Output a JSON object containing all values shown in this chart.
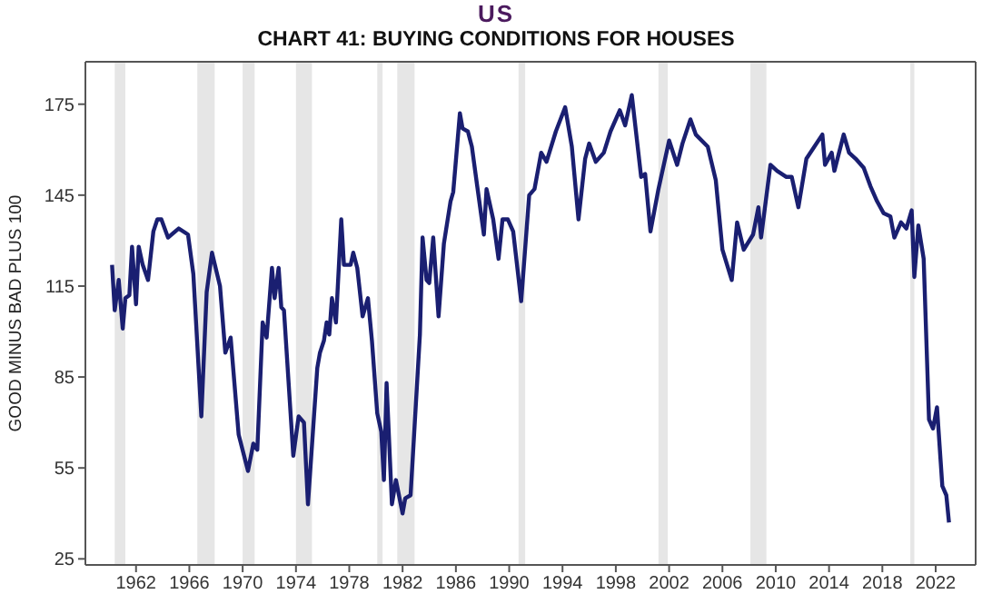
{
  "chart_data": {
    "type": "line",
    "title": "US",
    "subtitle": "CHART 41: BUYING CONDITIONS FOR HOUSES",
    "ylabel": "GOOD MINUS BAD PLUS 100",
    "x": [
      1960.2,
      1960.4,
      1960.7,
      1961.0,
      1961.2,
      1961.5,
      1961.7,
      1962.0,
      1962.2,
      1962.5,
      1962.9,
      1963.3,
      1963.6,
      1963.9,
      1964.4,
      1965.2,
      1965.9,
      1966.3,
      1966.9,
      1967.3,
      1967.7,
      1968.3,
      1968.7,
      1969.1,
      1969.7,
      1970.4,
      1970.8,
      1971.1,
      1971.5,
      1971.8,
      1972.2,
      1972.4,
      1972.7,
      1972.9,
      1973.1,
      1973.8,
      1974.2,
      1974.6,
      1974.9,
      1975.6,
      1975.8,
      1976.1,
      1976.3,
      1976.5,
      1976.7,
      1977.0,
      1977.4,
      1977.6,
      1978.1,
      1978.3,
      1978.6,
      1979.0,
      1979.4,
      1979.7,
      1980.1,
      1980.4,
      1980.6,
      1980.8,
      1981.2,
      1981.5,
      1982.0,
      1982.2,
      1982.6,
      1983.3,
      1983.5,
      1983.8,
      1984.0,
      1984.3,
      1984.7,
      1985.1,
      1985.6,
      1985.8,
      1986.3,
      1986.5,
      1986.9,
      1987.2,
      1987.6,
      1988.1,
      1988.3,
      1988.8,
      1989.2,
      1989.5,
      1989.9,
      1990.3,
      1990.9,
      1991.5,
      1991.9,
      1992.4,
      1992.8,
      1993.5,
      1994.2,
      1994.7,
      1995.2,
      1995.7,
      1996.0,
      1996.5,
      1997.1,
      1997.6,
      1998.3,
      1998.7,
      1999.2,
      1999.9,
      2000.2,
      2000.6,
      2001.2,
      2002.0,
      2002.6,
      2003.0,
      2003.6,
      2004.0,
      2004.9,
      2005.5,
      2006.0,
      2006.7,
      2007.1,
      2007.6,
      2008.3,
      2008.7,
      2008.9,
      2009.6,
      2010.1,
      2010.8,
      2011.2,
      2011.7,
      2012.3,
      2013.5,
      2013.7,
      2014.2,
      2014.4,
      2015.1,
      2015.5,
      2016.0,
      2016.6,
      2017.1,
      2017.6,
      2018.1,
      2018.6,
      2018.9,
      2019.4,
      2019.8,
      2020.2,
      2020.4,
      2020.7,
      2021.1,
      2021.5,
      2021.8,
      2022.1,
      2022.5,
      2022.8,
      2023.0
    ],
    "series": [
      {
        "color": "#1a1f71",
        "values": [
          122,
          107,
          117,
          101,
          111,
          112,
          128,
          109,
          128,
          122,
          117,
          133,
          137,
          137,
          131,
          134,
          132,
          119,
          72,
          113,
          126,
          115,
          93,
          98,
          66,
          54,
          63,
          61,
          103,
          98,
          121,
          111,
          121,
          108,
          107,
          59,
          72,
          70,
          43,
          88,
          93,
          97,
          103,
          99,
          111,
          103,
          137,
          122,
          122,
          126,
          121,
          105,
          111,
          97,
          73,
          67,
          51,
          83,
          43,
          51,
          40,
          45,
          46,
          99,
          131,
          117,
          116,
          131,
          105,
          129,
          143,
          146,
          172,
          167,
          166,
          161,
          148,
          132,
          147,
          137,
          124,
          137,
          137,
          133,
          110,
          145,
          147,
          159,
          156,
          166,
          174,
          161,
          137,
          157,
          162,
          156,
          159,
          166,
          173,
          168,
          178,
          151,
          152,
          133,
          147,
          163,
          155,
          162,
          170,
          165,
          161,
          150,
          127,
          117,
          136,
          127,
          132,
          141,
          131,
          155,
          153,
          151,
          151,
          141,
          157,
          165,
          155,
          159,
          153,
          165,
          159,
          157,
          154,
          148,
          143,
          139,
          138,
          131,
          136,
          134,
          140,
          118,
          135,
          124,
          71,
          68,
          75,
          49,
          46,
          37
        ]
      }
    ],
    "xlim": [
      1958.2,
      2025
    ],
    "xticks": [
      1962,
      1966,
      1970,
      1974,
      1978,
      1982,
      1986,
      1990,
      1994,
      1998,
      2002,
      2006,
      2010,
      2014,
      2018,
      2022
    ],
    "ylim": [
      23,
      189
    ],
    "yticks": [
      25,
      55,
      85,
      115,
      145,
      175
    ],
    "bands": [
      {
        "axis": "x",
        "from": 1960.4,
        "to": 1961.2,
        "color": "#e6e6e6"
      },
      {
        "axis": "x",
        "from": 1966.6,
        "to": 1967.9,
        "color": "#e6e6e6"
      },
      {
        "axis": "x",
        "from": 1970.0,
        "to": 1970.9,
        "color": "#e6e6e6"
      },
      {
        "axis": "x",
        "from": 1974.0,
        "to": 1975.2,
        "color": "#e6e6e6"
      },
      {
        "axis": "x",
        "from": 1980.1,
        "to": 1980.5,
        "color": "#e6e6e6"
      },
      {
        "axis": "x",
        "from": 1981.6,
        "to": 1982.9,
        "color": "#e6e6e6"
      },
      {
        "axis": "x",
        "from": 1990.7,
        "to": 1991.2,
        "color": "#e6e6e6"
      },
      {
        "axis": "x",
        "from": 2001.2,
        "to": 2001.9,
        "color": "#e6e6e6"
      },
      {
        "axis": "x",
        "from": 2008.1,
        "to": 2009.3,
        "color": "#e6e6e6"
      },
      {
        "axis": "x",
        "from": 2020.1,
        "to": 2020.4,
        "color": "#e6e6e6"
      }
    ]
  }
}
